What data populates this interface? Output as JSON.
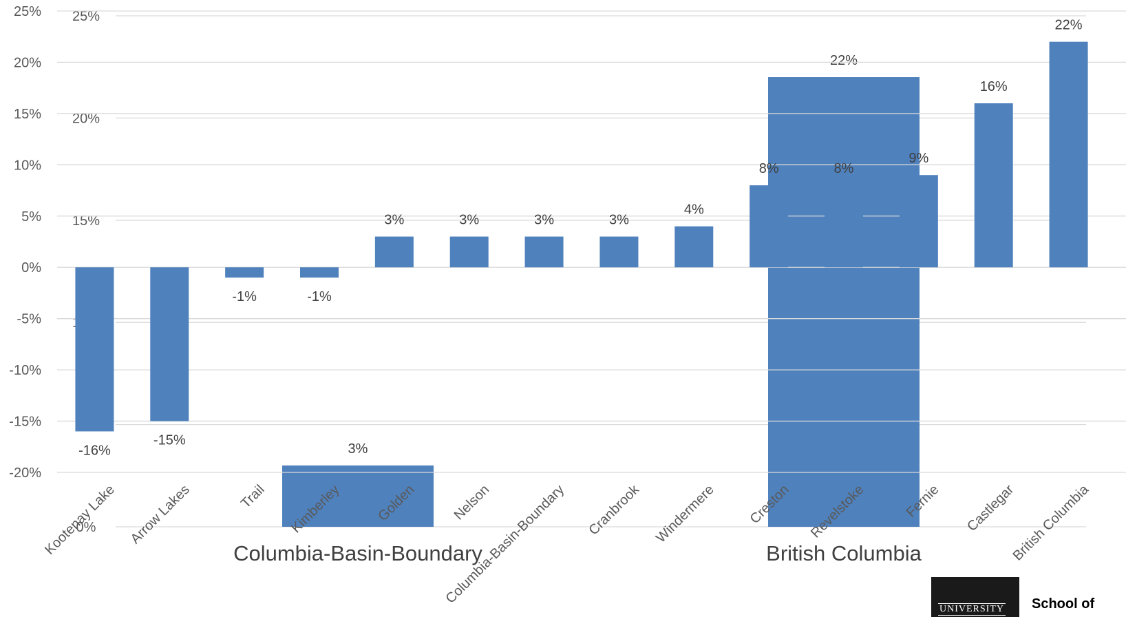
{
  "chart_data": [
    {
      "type": "bar",
      "categories": [
        "Kootenay Lake",
        "Arrow Lakes",
        "Trail",
        "Kimberley",
        "Golden",
        "Nelson",
        "Columbia-Basin-Boundary",
        "Cranbrook",
        "Windermere",
        "Creston",
        "Revelstoke",
        "Fernie",
        "Castlegar",
        "British Columbia"
      ],
      "values": [
        -16,
        -15,
        -1,
        -1,
        3,
        3,
        3,
        3,
        4,
        8,
        8,
        9,
        16,
        22
      ],
      "data_labels": [
        "-16%",
        "-15%",
        "-1%",
        "-1%",
        "3%",
        "3%",
        "3%",
        "3%",
        "4%",
        "8%",
        "8%",
        "9%",
        "16%",
        "22%"
      ],
      "ylim": [
        -20,
        25
      ],
      "yticks": [
        "25%",
        "20%",
        "15%",
        "10%",
        "5%",
        "0%",
        "-5%",
        "-10%",
        "-15%",
        "-20%"
      ],
      "groups": [
        "Columbia-Basin-Boundary",
        "British Columbia"
      ],
      "title": "",
      "xlabel": "",
      "ylabel": "",
      "color": "#4f81bd",
      "grid": true
    },
    {
      "type": "bar",
      "categories": [
        "Columbia-Basin-Boundary",
        "British Columbia"
      ],
      "values": [
        3,
        22
      ],
      "data_labels": [
        "3%",
        "22%"
      ],
      "ylim": [
        0,
        25
      ],
      "yticks": [
        "25%",
        "20%",
        "15%",
        "10%",
        "5%",
        "0%"
      ],
      "title": "",
      "xlabel": "",
      "ylabel": "",
      "color": "#4f81bd"
    }
  ],
  "logo": {
    "university": "UNIVERSITY",
    "text": "School of"
  }
}
